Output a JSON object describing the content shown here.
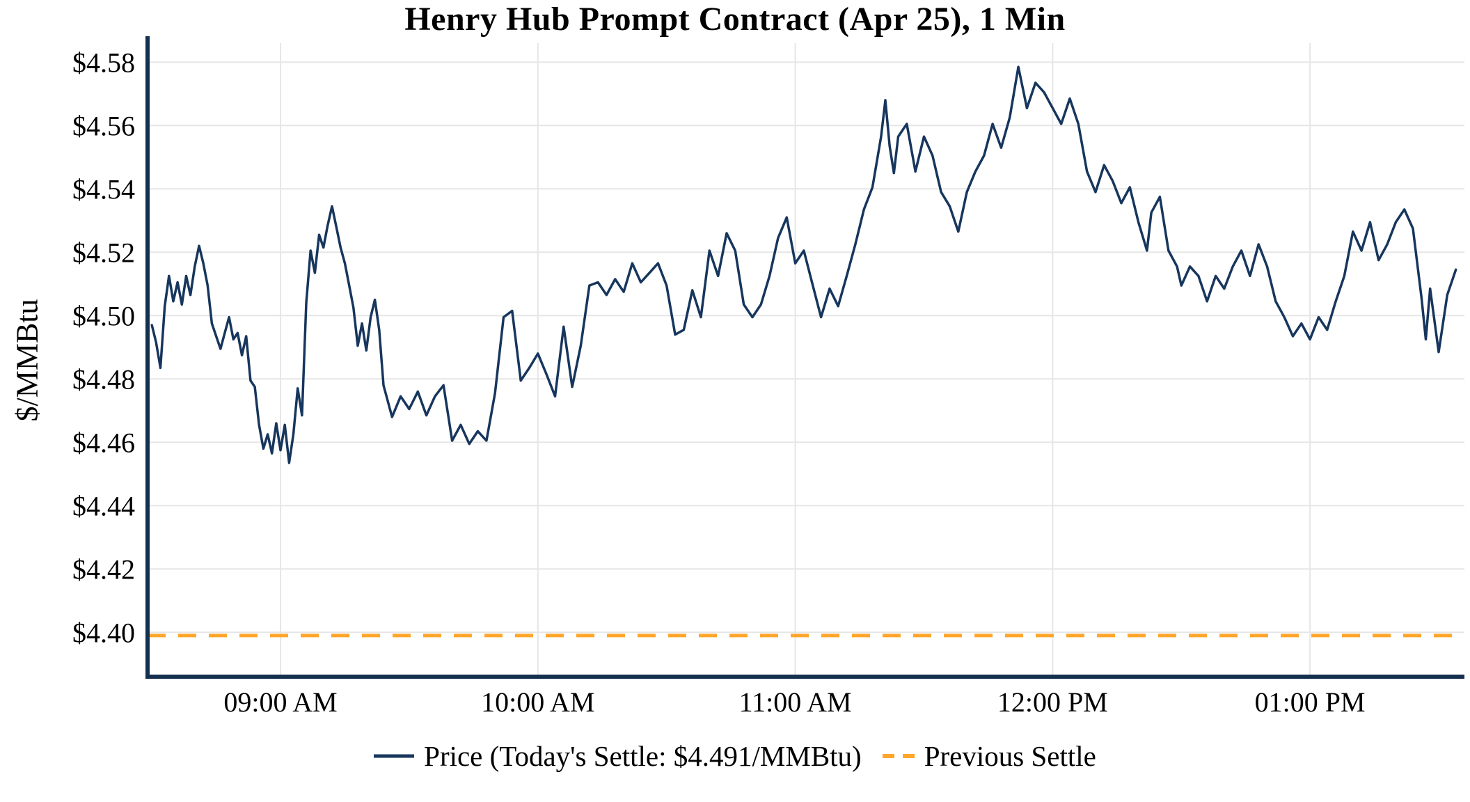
{
  "accent_colors": {
    "price_line": "#17365d",
    "previous_settle_line": "#FFA62B",
    "axis": "#14304f",
    "grid": "#e6e6e6",
    "text": "#000000"
  },
  "chart_data": {
    "type": "line",
    "title": "Henry Hub Prompt Contract (Apr 25), 1 Min",
    "ylabel": "$/MMBtu",
    "xlabel": "",
    "x_unit": "minutes_after_08:30_AM",
    "xlim": [
      -1,
      306
    ],
    "ylim": [
      4.386,
      4.586
    ],
    "grid": true,
    "legend_position": "bottom",
    "today_settle": 4.491,
    "previous_settle": 4.399,
    "y_ticks": [
      {
        "value": 4.4,
        "label": "$4.40"
      },
      {
        "value": 4.42,
        "label": "$4.42"
      },
      {
        "value": 4.44,
        "label": "$4.44"
      },
      {
        "value": 4.46,
        "label": "$4.46"
      },
      {
        "value": 4.48,
        "label": "$4.48"
      },
      {
        "value": 4.5,
        "label": "$4.50"
      },
      {
        "value": 4.52,
        "label": "$4.52"
      },
      {
        "value": 4.54,
        "label": "$4.54"
      },
      {
        "value": 4.56,
        "label": "$4.56"
      },
      {
        "value": 4.58,
        "label": "$4.58"
      }
    ],
    "x_ticks": [
      {
        "minute": 30,
        "label": "09:00 AM"
      },
      {
        "minute": 90,
        "label": "10:00 AM"
      },
      {
        "minute": 150,
        "label": "11:00 AM"
      },
      {
        "minute": 210,
        "label": "12:00 PM"
      },
      {
        "minute": 270,
        "label": "01:00 PM"
      }
    ],
    "series": [
      {
        "name": "Price (Today's Settle: $4.491/MMBtu)",
        "type": "line",
        "color": "#17365d",
        "points": [
          [
            0,
            4.497
          ],
          [
            1,
            4.4915
          ],
          [
            2,
            4.4835
          ],
          [
            3,
            4.503
          ],
          [
            4,
            4.5125
          ],
          [
            5,
            4.5045
          ],
          [
            6,
            4.5105
          ],
          [
            7,
            4.5035
          ],
          [
            8,
            4.5125
          ],
          [
            9,
            4.5065
          ],
          [
            10,
            4.5155
          ],
          [
            11,
            4.522
          ],
          [
            12,
            4.5165
          ],
          [
            13,
            4.5095
          ],
          [
            14,
            4.4975
          ],
          [
            15,
            4.4935
          ],
          [
            16,
            4.4895
          ],
          [
            17,
            4.4945
          ],
          [
            18,
            4.4995
          ],
          [
            19,
            4.4925
          ],
          [
            20,
            4.4945
          ],
          [
            21,
            4.4875
          ],
          [
            22,
            4.4935
          ],
          [
            23,
            4.4795
          ],
          [
            24,
            4.4775
          ],
          [
            25,
            4.4655
          ],
          [
            26,
            4.458
          ],
          [
            27,
            4.4625
          ],
          [
            28,
            4.4565
          ],
          [
            29,
            4.466
          ],
          [
            30,
            4.4575
          ],
          [
            31,
            4.4655
          ],
          [
            32,
            4.4535
          ],
          [
            33,
            4.4625
          ],
          [
            34,
            4.477
          ],
          [
            35,
            4.4685
          ],
          [
            36,
            4.504
          ],
          [
            37,
            4.5205
          ],
          [
            38,
            4.5135
          ],
          [
            39,
            4.5255
          ],
          [
            40,
            4.5215
          ],
          [
            41,
            4.5285
          ],
          [
            42,
            4.5345
          ],
          [
            43,
            4.528
          ],
          [
            44,
            4.5215
          ],
          [
            45,
            4.5165
          ],
          [
            46,
            4.5095
          ],
          [
            47,
            4.5025
          ],
          [
            48,
            4.4905
          ],
          [
            49,
            4.4975
          ],
          [
            50,
            4.489
          ],
          [
            51,
            4.4995
          ],
          [
            52,
            4.505
          ],
          [
            53,
            4.4955
          ],
          [
            54,
            4.478
          ],
          [
            56,
            4.468
          ],
          [
            58,
            4.4745
          ],
          [
            60,
            4.4705
          ],
          [
            62,
            4.476
          ],
          [
            64,
            4.4685
          ],
          [
            66,
            4.4745
          ],
          [
            68,
            4.478
          ],
          [
            70,
            4.4605
          ],
          [
            72,
            4.4655
          ],
          [
            74,
            4.4595
          ],
          [
            76,
            4.4635
          ],
          [
            78,
            4.4605
          ],
          [
            80,
            4.4755
          ],
          [
            82,
            4.4995
          ],
          [
            84,
            4.5015
          ],
          [
            86,
            4.4795
          ],
          [
            88,
            4.4835
          ],
          [
            90,
            4.488
          ],
          [
            92,
            4.4815
          ],
          [
            94,
            4.4745
          ],
          [
            96,
            4.4965
          ],
          [
            98,
            4.4775
          ],
          [
            100,
            4.4905
          ],
          [
            102,
            4.5095
          ],
          [
            104,
            4.5105
          ],
          [
            106,
            4.5065
          ],
          [
            108,
            4.5115
          ],
          [
            110,
            4.5075
          ],
          [
            112,
            4.5165
          ],
          [
            114,
            4.5105
          ],
          [
            116,
            4.5135
          ],
          [
            118,
            4.5165
          ],
          [
            120,
            4.5095
          ],
          [
            122,
            4.494
          ],
          [
            124,
            4.4955
          ],
          [
            126,
            4.508
          ],
          [
            128,
            4.4995
          ],
          [
            130,
            4.5205
          ],
          [
            132,
            4.5125
          ],
          [
            134,
            4.526
          ],
          [
            136,
            4.5205
          ],
          [
            138,
            4.5035
          ],
          [
            140,
            4.4995
          ],
          [
            142,
            4.5035
          ],
          [
            144,
            4.5125
          ],
          [
            146,
            4.5245
          ],
          [
            148,
            4.531
          ],
          [
            150,
            4.5165
          ],
          [
            152,
            4.5205
          ],
          [
            154,
            4.51
          ],
          [
            156,
            4.4995
          ],
          [
            158,
            4.5085
          ],
          [
            160,
            4.503
          ],
          [
            162,
            4.5125
          ],
          [
            164,
            4.5225
          ],
          [
            166,
            4.5335
          ],
          [
            168,
            4.5405
          ],
          [
            170,
            4.5565
          ],
          [
            171,
            4.568
          ],
          [
            172,
            4.5535
          ],
          [
            173,
            4.545
          ],
          [
            174,
            4.5565
          ],
          [
            176,
            4.5605
          ],
          [
            178,
            4.5455
          ],
          [
            180,
            4.5565
          ],
          [
            182,
            4.5505
          ],
          [
            184,
            4.539
          ],
          [
            186,
            4.5345
          ],
          [
            188,
            4.5265
          ],
          [
            190,
            4.539
          ],
          [
            192,
            4.5455
          ],
          [
            194,
            4.5505
          ],
          [
            196,
            4.5605
          ],
          [
            198,
            4.553
          ],
          [
            200,
            4.5625
          ],
          [
            202,
            4.5785
          ],
          [
            204,
            4.5655
          ],
          [
            206,
            4.5735
          ],
          [
            208,
            4.5705
          ],
          [
            210,
            4.5655
          ],
          [
            212,
            4.5605
          ],
          [
            214,
            4.5685
          ],
          [
            216,
            4.5605
          ],
          [
            218,
            4.5455
          ],
          [
            220,
            4.539
          ],
          [
            222,
            4.5475
          ],
          [
            224,
            4.5425
          ],
          [
            226,
            4.5355
          ],
          [
            228,
            4.5405
          ],
          [
            230,
            4.5295
          ],
          [
            232,
            4.5205
          ],
          [
            233,
            4.5325
          ],
          [
            235,
            4.5375
          ],
          [
            237,
            4.5205
          ],
          [
            239,
            4.5155
          ],
          [
            240,
            4.5095
          ],
          [
            242,
            4.5155
          ],
          [
            244,
            4.5125
          ],
          [
            246,
            4.5045
          ],
          [
            248,
            4.5125
          ],
          [
            250,
            4.5085
          ],
          [
            252,
            4.5155
          ],
          [
            254,
            4.5205
          ],
          [
            256,
            4.5125
          ],
          [
            258,
            4.5225
          ],
          [
            260,
            4.5155
          ],
          [
            262,
            4.5045
          ],
          [
            264,
            4.4995
          ],
          [
            266,
            4.4935
          ],
          [
            268,
            4.4975
          ],
          [
            270,
            4.4925
          ],
          [
            272,
            4.4995
          ],
          [
            274,
            4.4955
          ],
          [
            276,
            4.5045
          ],
          [
            278,
            4.5125
          ],
          [
            280,
            4.5265
          ],
          [
            282,
            4.5205
          ],
          [
            284,
            4.5295
          ],
          [
            286,
            4.5175
          ],
          [
            288,
            4.5225
          ],
          [
            290,
            4.5295
          ],
          [
            292,
            4.5335
          ],
          [
            294,
            4.5275
          ],
          [
            296,
            4.5055
          ],
          [
            297,
            4.4925
          ],
          [
            298,
            4.5085
          ],
          [
            300,
            4.4885
          ],
          [
            302,
            4.5065
          ],
          [
            304,
            4.5145
          ]
        ]
      },
      {
        "name": "Previous Settle",
        "type": "hline",
        "style": "dashed",
        "color": "#FFA62B",
        "value": 4.399
      }
    ]
  }
}
